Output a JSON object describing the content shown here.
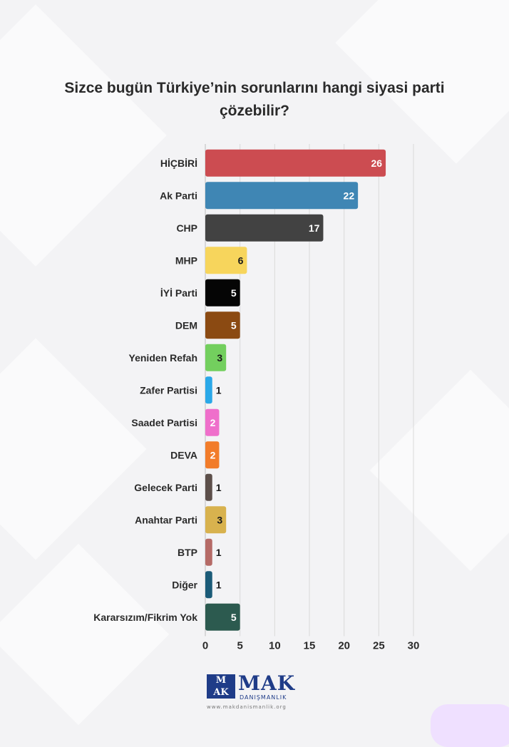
{
  "title_line1": "Sizce bugün Türkiye’nin sorunlarını hangi siyasi parti",
  "title_line2": "çözebilir?",
  "chart_data": {
    "type": "bar",
    "orientation": "horizontal",
    "title": "Sizce bugün Türkiye’nin sorunlarını hangi siyasi parti çözebilir?",
    "categories": [
      "HİÇBİRİ",
      "Ak Parti",
      "CHP",
      "MHP",
      "İYİ Parti",
      "DEM",
      "Yeniden Refah",
      "Zafer Partisi",
      "Saadet Partisi",
      "DEVA",
      "Gelecek Parti",
      "Anahtar Parti",
      "BTP",
      "Diğer",
      "Kararsızım/Fikrim Yok"
    ],
    "values": [
      26,
      22,
      17,
      6,
      5,
      5,
      3,
      1,
      2,
      2,
      1,
      3,
      1,
      1,
      5
    ],
    "colors": [
      "#cc4c51",
      "#3f86b4",
      "#424242",
      "#f7d55c",
      "#050505",
      "#8b4a12",
      "#73cf5e",
      "#2aa8e8",
      "#ef6fcb",
      "#f27c2a",
      "#5c4f4a",
      "#d8b24e",
      "#b56a66",
      "#1b5b78",
      "#2c5a4f"
    ],
    "label_colors": [
      "#ffffff",
      "#ffffff",
      "#ffffff",
      "#1a1a1a",
      "#ffffff",
      "#ffffff",
      "#1a1a1a",
      "#1a1a1a",
      "#ffffff",
      "#ffffff",
      "#1a1a1a",
      "#1a1a1a",
      "#1a1a1a",
      "#1a1a1a",
      "#ffffff"
    ],
    "label_inside": [
      true,
      true,
      true,
      true,
      true,
      true,
      true,
      false,
      true,
      true,
      false,
      true,
      false,
      false,
      true
    ],
    "xlim": [
      0,
      30
    ],
    "xticks": [
      0,
      5,
      10,
      15,
      20,
      25,
      30
    ],
    "grid": true,
    "legend": "none"
  },
  "logo": {
    "box_text_top": "M",
    "box_text_bottom": "AK",
    "name": "MAK",
    "sub": "DANIŞMANLIK",
    "url": "www.makdanismanlik.org"
  }
}
